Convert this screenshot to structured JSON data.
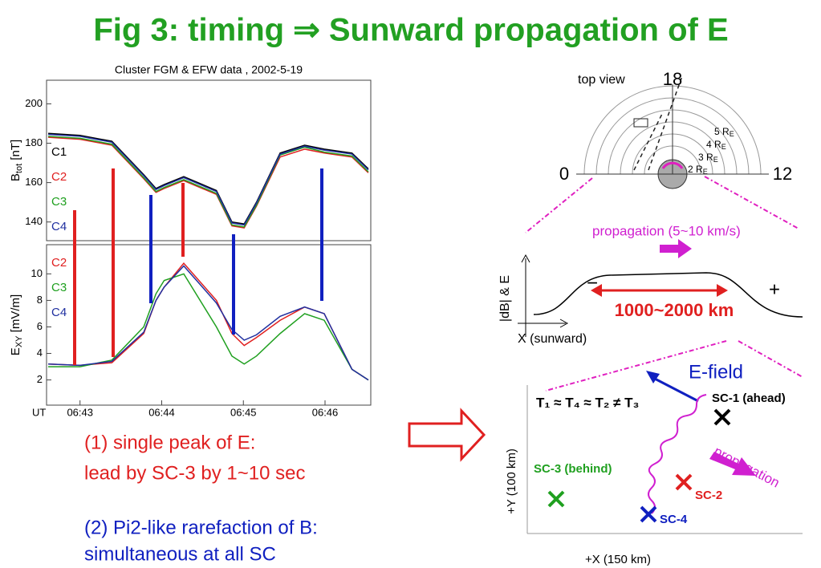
{
  "title": "Fig 3: timing ⇒ Sunward propagation of E",
  "chart_data": [
    {
      "type": "line",
      "title": "Cluster FGM & EFW data , 2002-5-19",
      "ylabel": {
        "base": "B",
        "sub": "tot",
        "rest": " [nT]"
      },
      "x": [
        42.61,
        43,
        43.39,
        43.78,
        43.93,
        44.03,
        44.27,
        44.67,
        44.86,
        45.01,
        45.16,
        45.45,
        45.75,
        45.99,
        46.33,
        46.53
      ],
      "xlim": [
        42.59,
        46.56
      ],
      "ylim": [
        130.5,
        212
      ],
      "yticks": [
        140,
        160,
        180,
        200
      ],
      "series": [
        {
          "name": "C1",
          "color": "#000000",
          "values": [
            185,
            184,
            181,
            164,
            157,
            159,
            163,
            156,
            140,
            139,
            150,
            175,
            179,
            177,
            175,
            167
          ]
        },
        {
          "name": "C2",
          "color": "#e02020",
          "values": [
            183,
            182,
            179,
            162,
            155,
            157,
            161,
            154,
            138,
            137,
            148,
            173,
            177,
            175,
            173,
            165
          ]
        },
        {
          "name": "C3",
          "color": "#20a020",
          "values": [
            183.5,
            182.5,
            179.5,
            162.5,
            155.5,
            157.5,
            161.5,
            154.5,
            138.5,
            137.5,
            148.5,
            174,
            178,
            175.5,
            173.5,
            165.5
          ]
        },
        {
          "name": "C4",
          "color": "#2030a0",
          "values": [
            184.5,
            183.5,
            180.5,
            163.5,
            156.5,
            158.5,
            162.5,
            155.5,
            139.5,
            138.5,
            149.5,
            174.5,
            178.5,
            176.5,
            174.5,
            166.5
          ]
        }
      ]
    },
    {
      "type": "line",
      "ylabel": {
        "base": "E",
        "sub": "XY",
        "rest": " [mV/m]"
      },
      "xlabel": "UT",
      "x": [
        42.61,
        43,
        43.39,
        43.78,
        43.93,
        44.03,
        44.27,
        44.67,
        44.86,
        45.01,
        45.16,
        45.45,
        45.75,
        45.99,
        46.33,
        46.53
      ],
      "xlim": [
        42.59,
        46.56
      ],
      "ylim": [
        0.1,
        12.2
      ],
      "yticks": [
        2,
        4,
        6,
        8,
        10
      ],
      "xticks": [
        {
          "value": 43,
          "label": "06:43"
        },
        {
          "value": 44,
          "label": "06:44"
        },
        {
          "value": 45,
          "label": "06:45"
        },
        {
          "value": 46,
          "label": "06:46"
        }
      ],
      "series": [
        {
          "name": "C2",
          "color": "#e02020",
          "values": [
            3.2,
            3.1,
            3.3,
            5.5,
            8,
            9,
            10.8,
            8,
            5.5,
            4.6,
            5.2,
            6.5,
            7.5,
            7,
            2.8,
            2
          ]
        },
        {
          "name": "C3",
          "color": "#20a020",
          "values": [
            3,
            3,
            3.5,
            6,
            8.5,
            9.5,
            10,
            6,
            3.8,
            3.2,
            3.8,
            5.5,
            7,
            6.5,
            2.8,
            2
          ]
        },
        {
          "name": "C4",
          "color": "#2030a0",
          "values": [
            3.2,
            3.1,
            3.4,
            5.6,
            8,
            9,
            10.6,
            7.8,
            5.8,
            5,
            5.4,
            6.8,
            7.5,
            7,
            2.8,
            2
          ]
        }
      ]
    }
  ],
  "notes": [
    {
      "lines": [
        "(1) single peak of E:",
        "lead by SC-3 by 1~10 sec"
      ]
    },
    {
      "lines": [
        "(2) Pi2-like rarefaction of B:",
        "simultaneous at all SC"
      ]
    }
  ],
  "diagram": {
    "top_view": {
      "label": "top view",
      "mlt": [
        "18",
        "0",
        "12"
      ],
      "radii": [
        {
          "text": "5 R",
          "sub": "E"
        },
        {
          "text": "4 R",
          "sub": "E"
        },
        {
          "text": "3 R",
          "sub": "E"
        },
        {
          "text": "2 R",
          "sub": "E"
        }
      ]
    },
    "propagation_speed": "propagation  (5~10 km/s)",
    "profile": {
      "ylabel": "|dB| & E",
      "xlabel": "X (sunward)",
      "minus": "−",
      "plus": "+",
      "scale": "1000~2000 km"
    },
    "positions": {
      "timing": "T₁ ≈ T₄ ≈ T₂ ≠ T₃",
      "efield": "E-field",
      "propagation": "propagation",
      "ylabel": "+Y (100 km)",
      "xlabel": "+X (150 km)",
      "sc1": "SC-1 (ahead)",
      "sc2": "SC-2",
      "sc3": "SC-3 (behind)",
      "sc4": "SC-4"
    }
  }
}
